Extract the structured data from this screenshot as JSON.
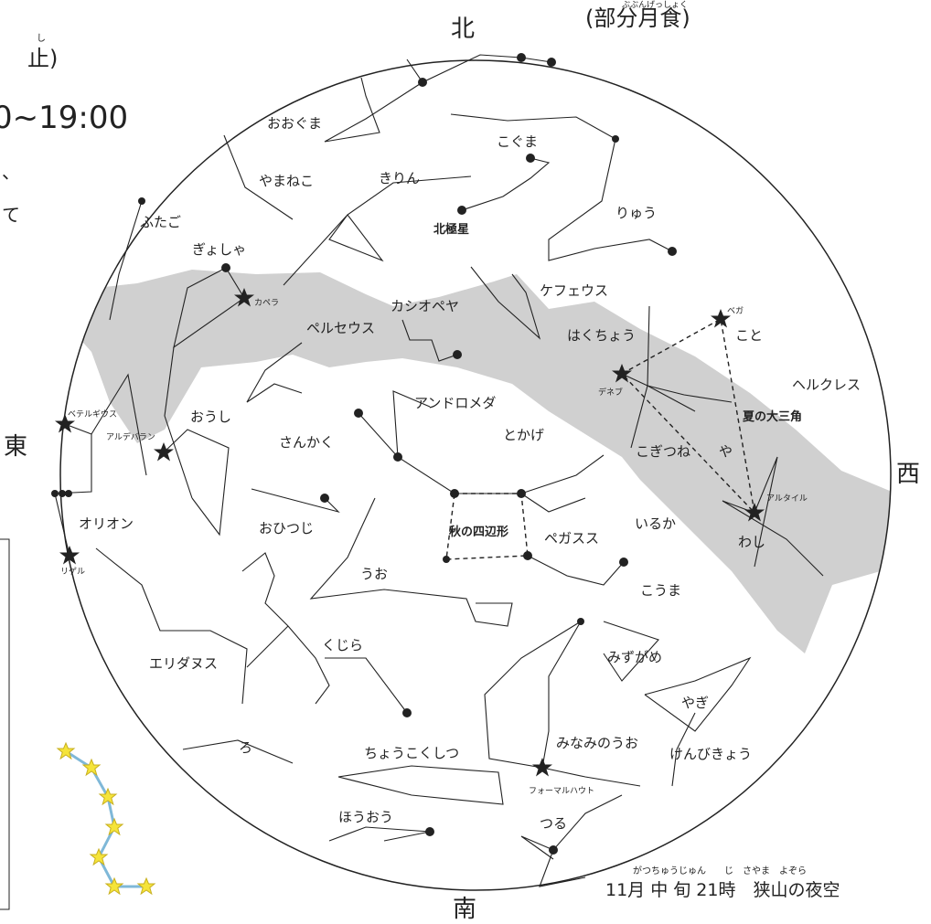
{
  "header": {
    "eclipse": "(部分月食)",
    "eclipse_ruby": "ぶぶんげっしょく",
    "fragment_1": "止)",
    "fragment_1_ruby": "し",
    "time": "0~19:00",
    "fragment_2": "、",
    "fragment_3": "て"
  },
  "directions": {
    "north": "北",
    "south": "南",
    "east": "東",
    "west": "西"
  },
  "constellations": [
    "おおぐま",
    "やまねこ",
    "きりん",
    "こぐま",
    "りゅう",
    "ふたご",
    "ぎょしゃ",
    "ケフェウス",
    "カシオペヤ",
    "ペルセウス",
    "はくちょう",
    "こと",
    "ヘルクレス",
    "アンドロメダ",
    "おうし",
    "とかげ",
    "さんかく",
    "や",
    "こぎつね",
    "いるか",
    "ペガスス",
    "オリオン",
    "おひつじ",
    "わし",
    "うお",
    "こうま",
    "くじら",
    "エリダヌス",
    "みずがめ",
    "やぎ",
    "みなみのうお",
    "ろ",
    "ちょうこくしつ",
    "けんびきょう",
    "ほうおう",
    "つる"
  ],
  "asterisms": [
    "北極星",
    "夏の大三角",
    "秋の四辺形"
  ],
  "stars": [
    "カペラ",
    "ベテルギウス",
    "アルデバラン",
    "リゲル",
    "デネブ",
    "ベガ",
    "アルタイル",
    "フォーマルハウト"
  ],
  "caption": {
    "ruby": "がつちゅうじゅん　　じ　さやま　よぞら",
    "text": "11月 中 旬 21時　狭山の夜空"
  }
}
